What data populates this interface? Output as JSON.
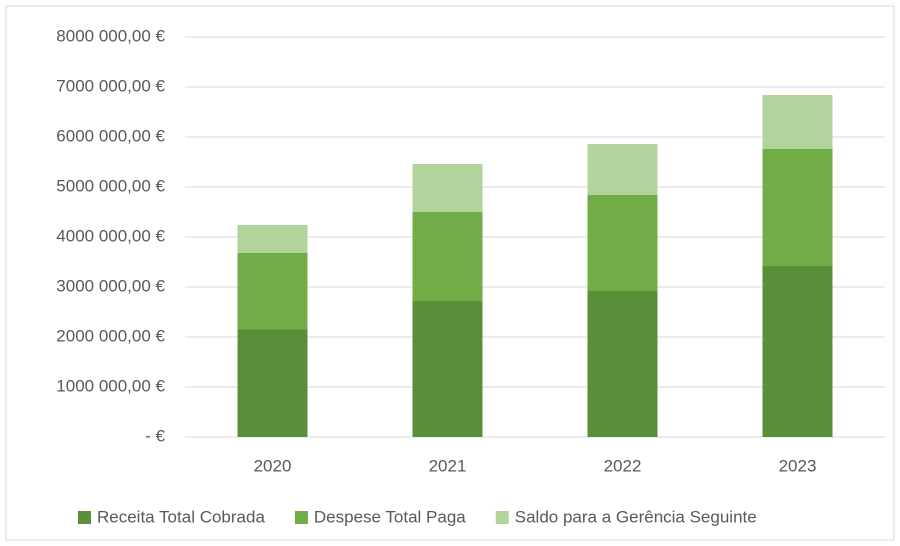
{
  "chart_data": {
    "type": "stacked_bar",
    "categories": [
      "2020",
      "2021",
      "2022",
      "2023"
    ],
    "series": [
      {
        "name": "Receita Total Cobrada",
        "color": "#5a8f39",
        "values": [
          2150000,
          2720000,
          2920000,
          3420000
        ]
      },
      {
        "name": "Despese Total Paga",
        "color": "#70ad47",
        "values": [
          1530000,
          1780000,
          1920000,
          2340000
        ]
      },
      {
        "name": "Saldo para a Gerência Seguinte",
        "color": "#b3d39c",
        "values": [
          560000,
          960000,
          1020000,
          1080000
        ]
      }
    ],
    "ylim": [
      0,
      8000000
    ],
    "yticks": [
      {
        "value": 0,
        "label": "-  €"
      },
      {
        "value": 1000000,
        "label": "1000 000,00 €"
      },
      {
        "value": 2000000,
        "label": "2000 000,00 €"
      },
      {
        "value": 3000000,
        "label": "3000 000,00 €"
      },
      {
        "value": 4000000,
        "label": "4000 000,00 €"
      },
      {
        "value": 5000000,
        "label": "5000 000,00 €"
      },
      {
        "value": 6000000,
        "label": "6000 000,00 €"
      },
      {
        "value": 7000000,
        "label": "7000 000,00 €"
      },
      {
        "value": 8000000,
        "label": "8000 000,00 €"
      }
    ],
    "grid": true,
    "legend": "bottom"
  }
}
